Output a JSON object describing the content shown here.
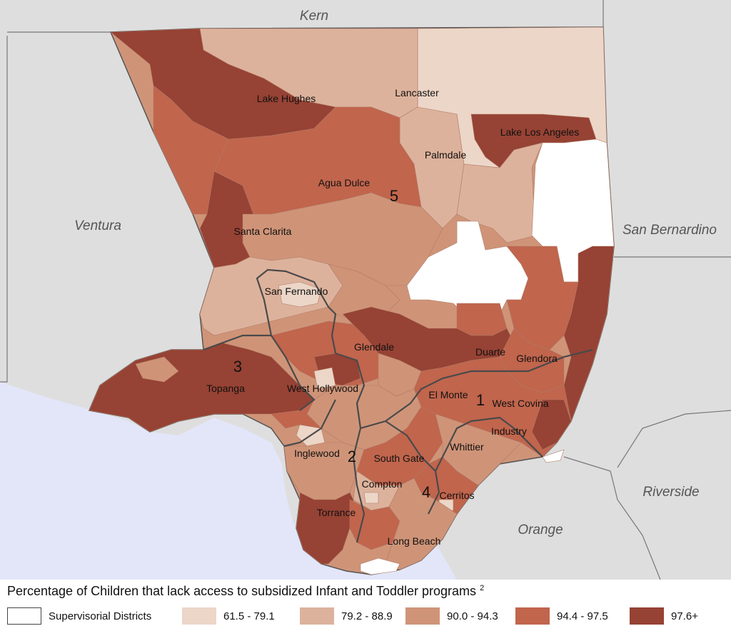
{
  "colors": {
    "c1": "#ecd6c8",
    "c2": "#ddb29c",
    "c3": "#cf9478",
    "c4": "#c1654d",
    "c5": "#964234",
    "ocean": "#e3e6f9",
    "land": "#dedede",
    "county_border": "#777777",
    "district_border": "#4a4a4a"
  },
  "neighbors": [
    "Kern",
    "Ventura",
    "San Bernardino",
    "Riverside",
    "Orange"
  ],
  "cities": [
    "Lake Hughes",
    "Lancaster",
    "Lake Los Angeles",
    "Palmdale",
    "Agua Dulce",
    "Santa Clarita",
    "San Fernando",
    "Glendale",
    "Duarte",
    "Glendora",
    "Topanga",
    "West Hollywood",
    "El Monte",
    "West Covina",
    "Industry",
    "Inglewood",
    "South Gate",
    "Whittier",
    "Compton",
    "Cerritos",
    "Torrance",
    "Long Beach"
  ],
  "districts": [
    "5",
    "3",
    "1",
    "2",
    "4"
  ],
  "legend": {
    "title": "Percentage of Children that lack access to subsidized Infant and Toddler programs",
    "footnote": "2",
    "items": [
      {
        "label": "Supervisorial Districts",
        "color": "#ffffff"
      },
      {
        "label": "61.5  - 79.1",
        "color": "#ecd6c8"
      },
      {
        "label": "79.2 - 88.9",
        "color": "#ddb29c"
      },
      {
        "label": "90.0 - 94.3",
        "color": "#cf9478"
      },
      {
        "label": "94.4 - 97.5",
        "color": "#c1654d"
      },
      {
        "label": "97.6+",
        "color": "#964234"
      }
    ]
  }
}
